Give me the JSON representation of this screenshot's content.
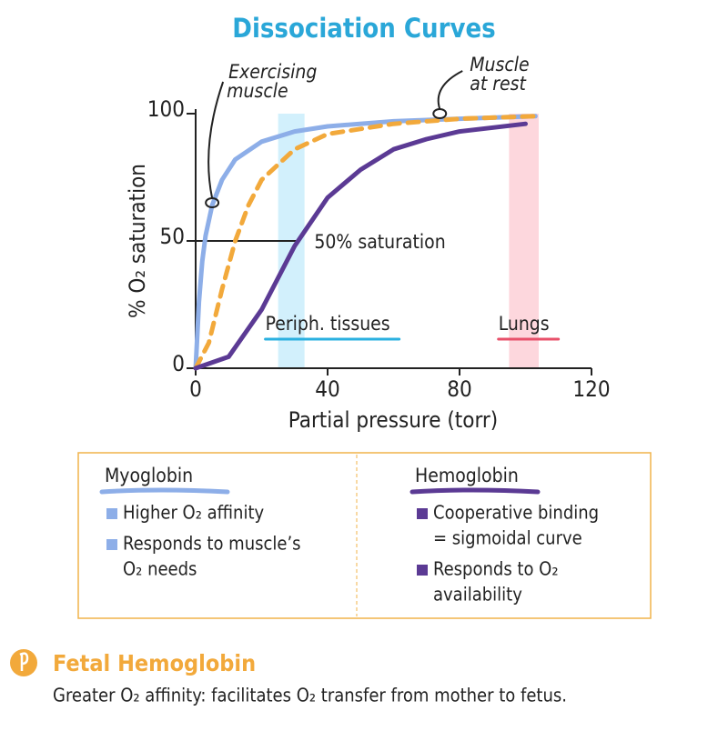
{
  "chart_data": {
    "type": "line",
    "title": "Dissociation Curves",
    "x_label": "Partial pressure (torr)",
    "y_label": "% O₂ saturation",
    "xlim": [
      0,
      120
    ],
    "ylim": [
      0,
      100
    ],
    "xticks": [
      0,
      40,
      80,
      120
    ],
    "yticks": [
      0,
      50,
      100
    ],
    "series": [
      {
        "name": "Myoglobin",
        "color": "#8daee8",
        "dashed": false,
        "x": [
          0,
          1,
          2,
          3,
          5,
          8,
          12,
          20,
          30,
          40,
          60,
          80,
          103
        ],
        "values": [
          0,
          26,
          42,
          52,
          64,
          74,
          82,
          89,
          93,
          95,
          97,
          98,
          99
        ]
      },
      {
        "name": "Fetal Hemoglobin",
        "color": "#f2a93b",
        "dashed": true,
        "x": [
          0,
          4,
          8,
          12,
          16,
          20,
          30,
          40,
          60,
          80,
          103
        ],
        "values": [
          0,
          10,
          31,
          50,
          64,
          74,
          86,
          92,
          96,
          98,
          99
        ]
      },
      {
        "name": "Hemoglobin",
        "color": "#5b3a94",
        "dashed": false,
        "x": [
          0,
          10,
          20,
          30,
          40,
          50,
          60,
          70,
          80,
          100
        ],
        "values": [
          0,
          4.5,
          23,
          48,
          67,
          78,
          86,
          90,
          93,
          96
        ]
      }
    ],
    "bands": [
      {
        "label": "Periph. tissues",
        "from": 25,
        "to": 33,
        "color": "#cdeefc",
        "underline": "#2ab0e0"
      },
      {
        "label": "Lungs",
        "from": 95,
        "to": 104,
        "color": "#fdd3d9",
        "underline": "#e8506a"
      }
    ],
    "reference": {
      "label": "50% saturation",
      "y": 50,
      "x_end": 31
    },
    "annotations": [
      {
        "lines": [
          "Exercising",
          "muscle"
        ],
        "x": 5,
        "y": 65
      },
      {
        "lines": [
          "Muscle",
          "at rest"
        ],
        "x": 74,
        "y": 100
      }
    ]
  },
  "info": {
    "myoglobin": [
      [
        "Higher O₂ affinity"
      ],
      [
        "Responds to muscle’s",
        "O₂ needs"
      ]
    ],
    "hemoglobin": [
      [
        "Cooperative binding",
        "= sigmoidal curve"
      ],
      [
        "Responds to O₂",
        "availability"
      ]
    ]
  },
  "fetal": {
    "text": "Greater O₂ affinity: facilitates O₂ transfer from mother to fetus."
  }
}
